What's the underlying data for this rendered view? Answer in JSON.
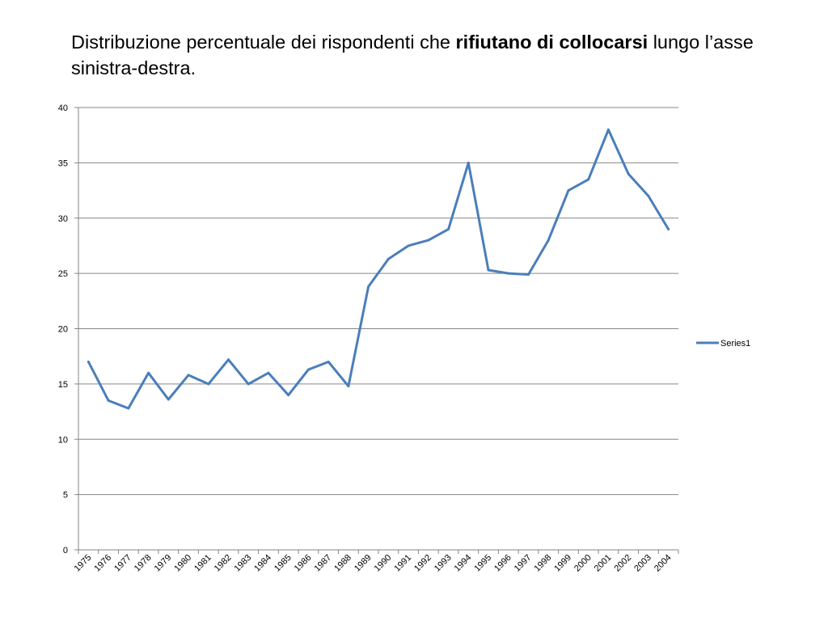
{
  "slide": {
    "title_part1": "Distribuzione percentuale dei rispondenti che ",
    "title_bold": "rifiutano di collocarsi",
    "title_part2": " lungo l’asse sinistra-destra."
  },
  "chart_data": {
    "type": "line",
    "title": "",
    "xlabel": "",
    "ylabel": "",
    "ylim": [
      0,
      40
    ],
    "ytick_step": 5,
    "grid": true,
    "legend_placement": "right",
    "x": [
      "1975",
      "1976",
      "1977",
      "1978",
      "1979",
      "1980",
      "1981",
      "1982",
      "1983",
      "1984",
      "1985",
      "1986",
      "1987",
      "1988",
      "1989",
      "1990",
      "1991",
      "1992",
      "1993",
      "1994",
      "1995",
      "1996",
      "1997",
      "1998",
      "1999",
      "2000",
      "2001",
      "2002",
      "2003",
      "2004"
    ],
    "series": [
      {
        "name": "Series1",
        "color": "#4a7ebb",
        "values": [
          17,
          13.5,
          12.8,
          16,
          13.6,
          15.8,
          15,
          17.2,
          15,
          16,
          14,
          16.3,
          17,
          14.8,
          23.8,
          26.3,
          27.5,
          28,
          29,
          35,
          25.3,
          25,
          24.9,
          28,
          32.5,
          33.5,
          38,
          34,
          32,
          29
        ]
      }
    ]
  }
}
